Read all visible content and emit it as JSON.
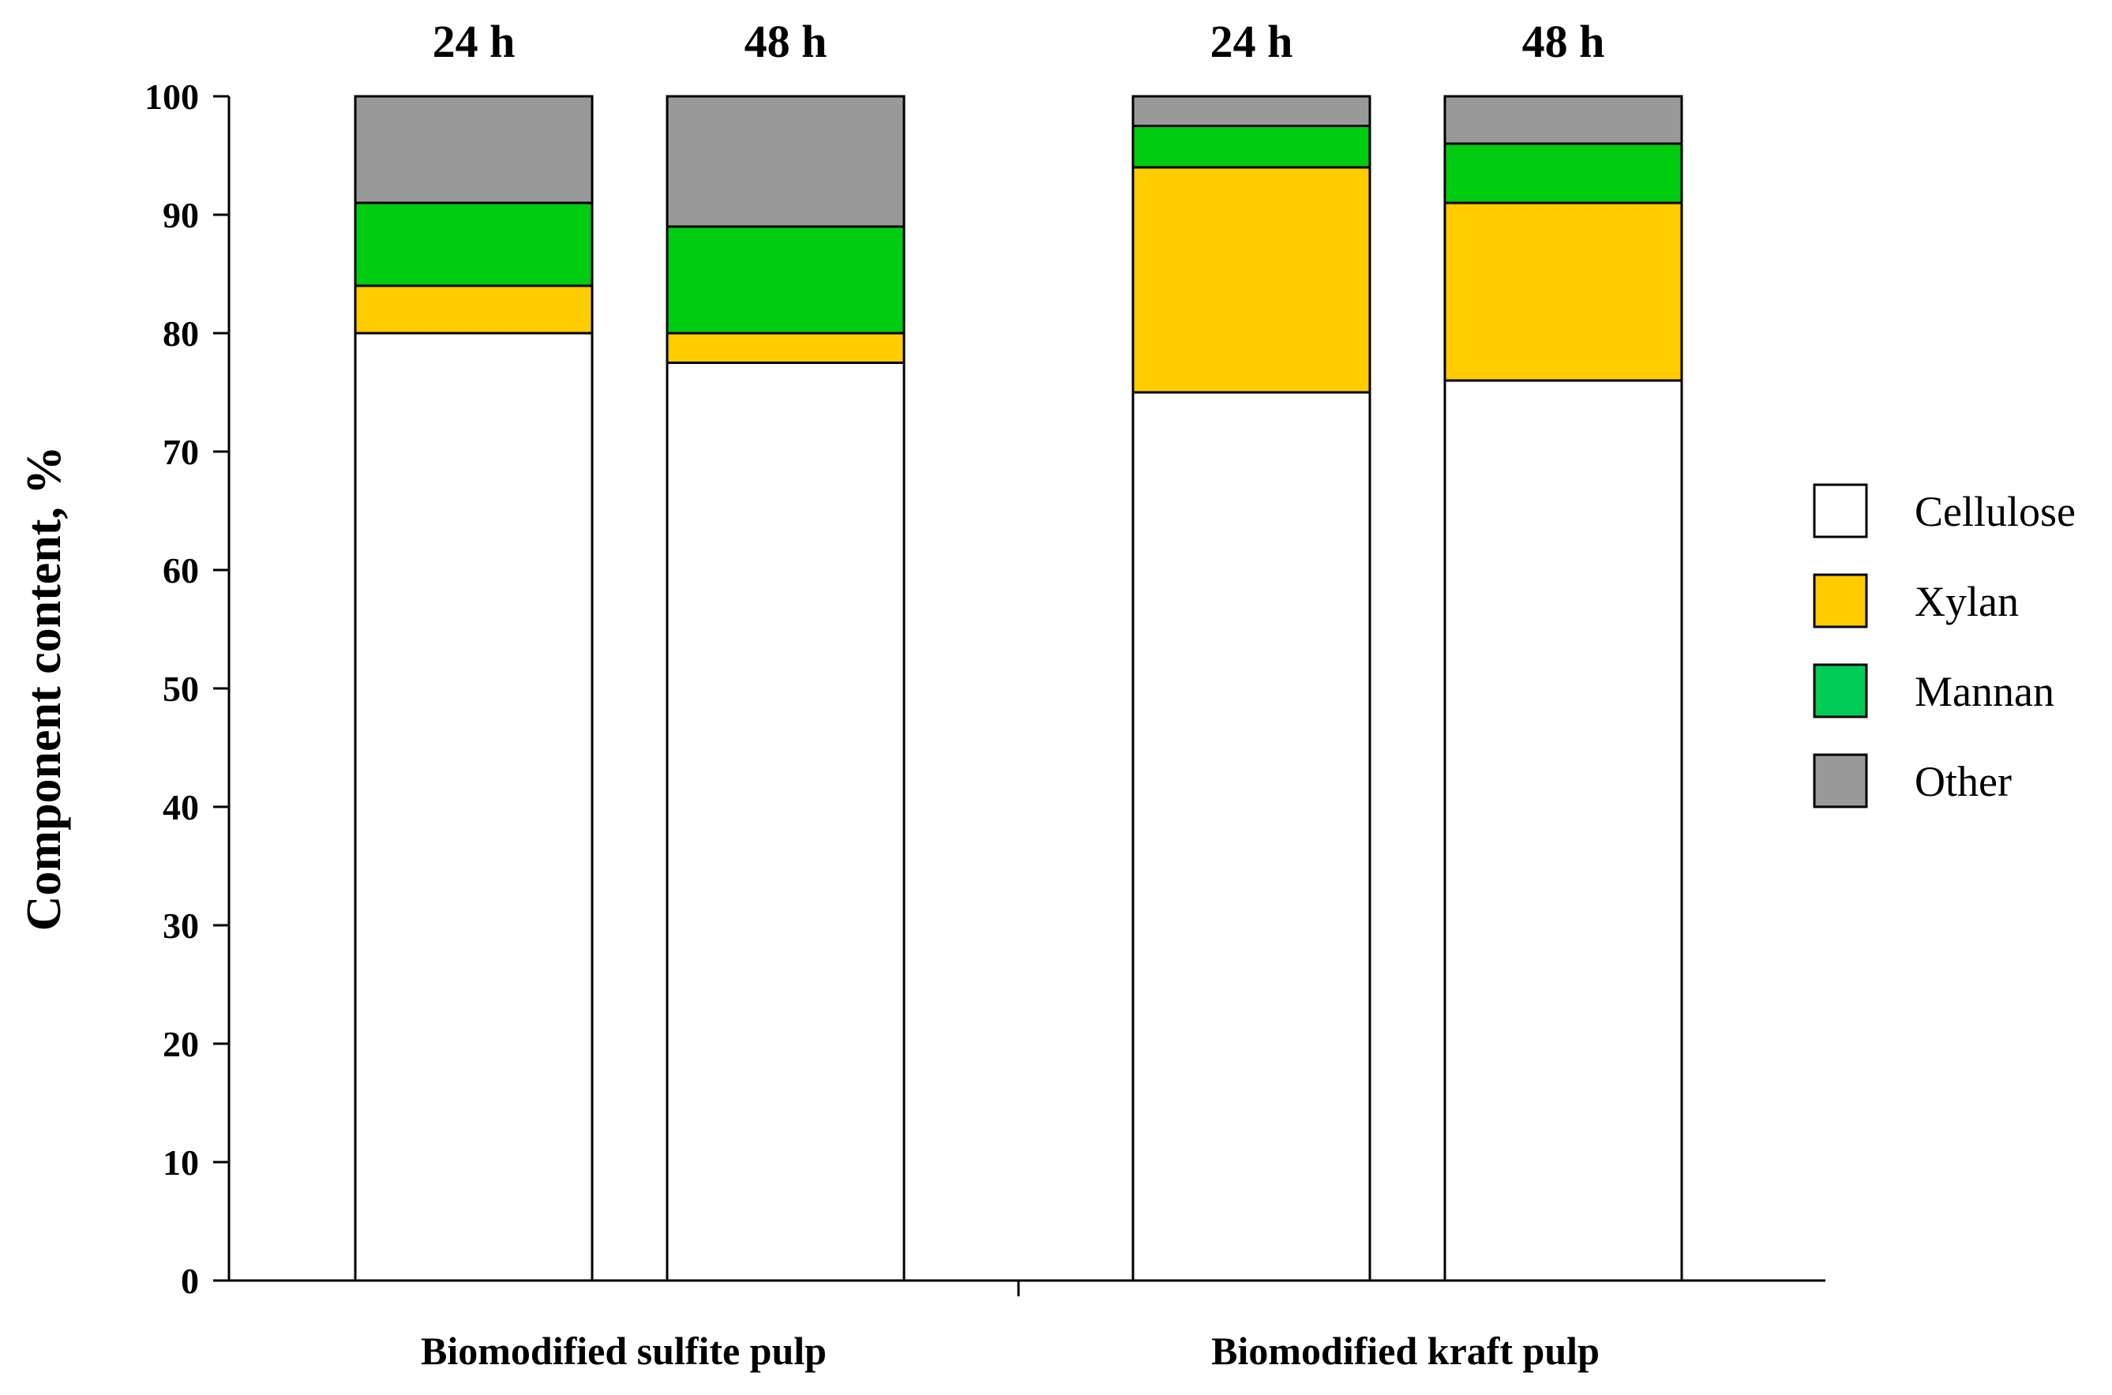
{
  "chart_data": {
    "type": "bar",
    "stacked": true,
    "title": "",
    "ylabel": "Component content, %",
    "xlabel": "",
    "ylim": [
      0,
      100
    ],
    "yticks": [
      0,
      10,
      20,
      30,
      40,
      50,
      60,
      70,
      80,
      90,
      100
    ],
    "groups": [
      "Biomodified sulfite pulp",
      "Biomodified kraft pulp"
    ],
    "bar_labels": [
      "24 h",
      "48 h",
      "24 h",
      "48 h"
    ],
    "bar_groups": [
      0,
      0,
      1,
      1
    ],
    "series": [
      {
        "name": "Cellulose",
        "color": "#ffffff",
        "values": [
          80,
          77.5,
          75,
          76
        ]
      },
      {
        "name": "Xylan",
        "color": "#ffcc00",
        "values": [
          4,
          2.5,
          19,
          15
        ]
      },
      {
        "name": "Mannan",
        "color": "#00cc11",
        "values": [
          7,
          9,
          3.5,
          5
        ]
      },
      {
        "name": "Other",
        "color": "#999999",
        "values": [
          9,
          11,
          2.5,
          4
        ]
      }
    ],
    "legend": {
      "position": "right",
      "entries": [
        {
          "name": "Cellulose",
          "color": "#ffffff"
        },
        {
          "name": "Xylan",
          "color": "#ffcc00"
        },
        {
          "name": "Mannan",
          "color": "#00cc55"
        },
        {
          "name": "Other",
          "color": "#999999"
        }
      ]
    },
    "grid": false
  }
}
